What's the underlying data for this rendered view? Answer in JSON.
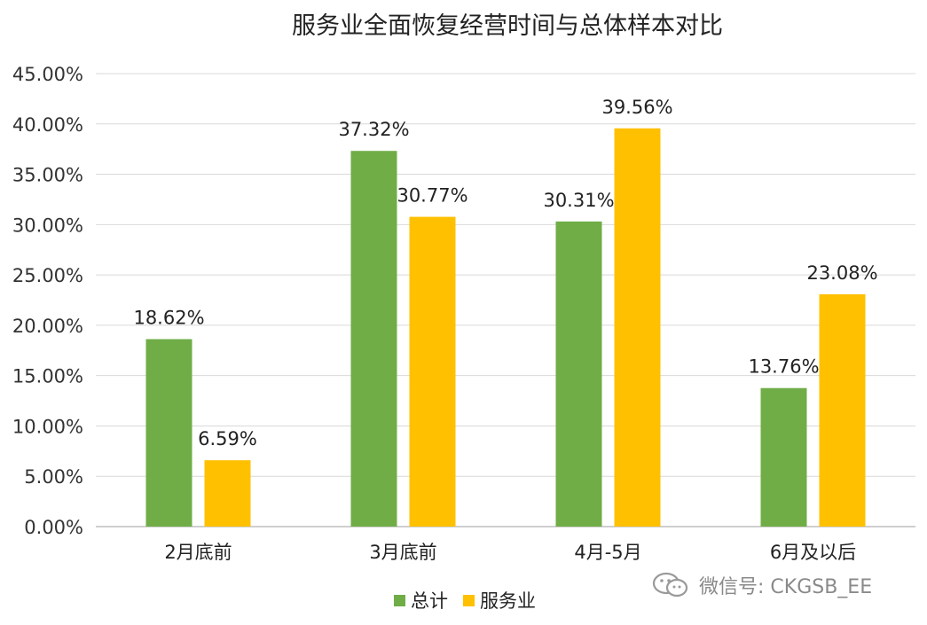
{
  "chart_data": {
    "type": "bar",
    "title": "服务业全面恢复经营时间与总体样本对比",
    "categories": [
      "2月底前",
      "3月底前",
      "4月-5月",
      "6月及以后"
    ],
    "series": [
      {
        "name": "总计",
        "color": "#70ad47",
        "values": [
          18.62,
          37.32,
          30.31,
          13.76
        ],
        "labels": [
          "18.62%",
          "37.32%",
          "30.31%",
          "13.76%"
        ]
      },
      {
        "name": "服务业",
        "color": "#ffc000",
        "values": [
          6.59,
          30.77,
          39.56,
          23.08
        ],
        "labels": [
          "6.59%",
          "30.77%",
          "39.56%",
          "23.08%"
        ]
      }
    ],
    "ylim": [
      0,
      45
    ],
    "yticks": [
      0,
      5,
      10,
      15,
      20,
      25,
      30,
      35,
      40,
      45
    ],
    "ytick_labels": [
      "0.00%",
      "5.00%",
      "10.00%",
      "15.00%",
      "20.00%",
      "25.00%",
      "30.00%",
      "35.00%",
      "40.00%",
      "45.00%"
    ],
    "grid": true,
    "legend_position": "bottom"
  },
  "watermark": {
    "text": "微信号: CKGSB_EE",
    "icon": "wechat-icon"
  }
}
